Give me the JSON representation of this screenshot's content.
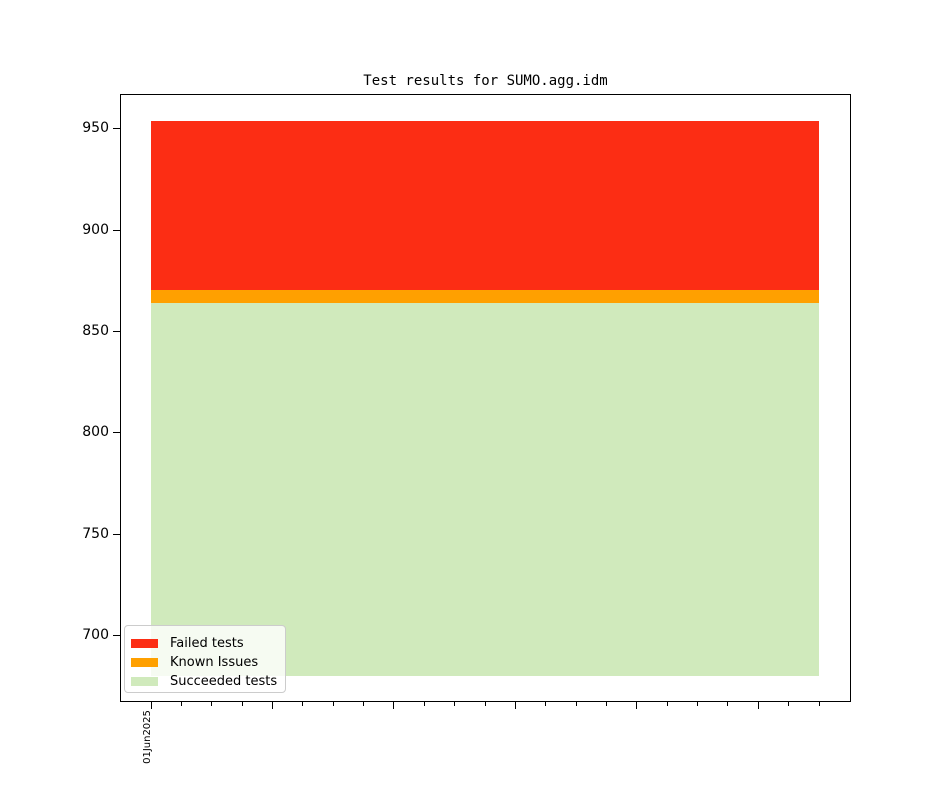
{
  "chart_data": {
    "type": "area",
    "stacked": true,
    "title": "Test results for SUMO.agg.idm",
    "xlabel": "",
    "ylabel": "",
    "x_tick_labels": [
      "01Jun2025"
    ],
    "series": [
      {
        "name": "Succeeded tests",
        "color": "#d0eabc",
        "band": [
          680,
          864
        ],
        "value": 864
      },
      {
        "name": "Known Issues",
        "color": "#ffa000",
        "band": [
          864,
          870.5
        ],
        "value": 6.5
      },
      {
        "name": "Failed tests",
        "color": "#fc2d14",
        "band": [
          870.5,
          953.5
        ],
        "value": 83
      }
    ],
    "totals": {
      "top_of_stack": 953.5,
      "baseline": 680
    },
    "ylim": [
      667,
      967
    ],
    "yticks": [
      700,
      750,
      800,
      850,
      900,
      950
    ],
    "xaxis": {
      "minor_tick_count": 23,
      "major_every": 4,
      "labeled_tick_index": 0
    },
    "grid": "off",
    "legend": {
      "position": "lower left",
      "entries": [
        "Failed tests",
        "Known Issues",
        "Succeeded tests"
      ]
    },
    "colors": {
      "background": "#ffffff",
      "spine": "#000000",
      "legend_border": "#cccccc"
    }
  }
}
